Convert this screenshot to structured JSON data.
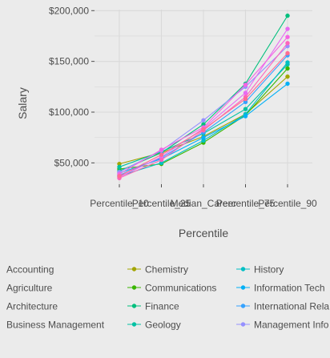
{
  "chart_data": {
    "type": "line",
    "xlabel": "Percentile",
    "ylabel": "Salary",
    "categories": [
      "Percentile_10",
      "Percentile_25",
      "Median_Career",
      "Percentile_75",
      "Percentile_90"
    ],
    "y_ticks": [
      {
        "value": 50000,
        "label": "$50,000"
      },
      {
        "value": 100000,
        "label": "$100,000"
      },
      {
        "value": 150000,
        "label": "$150,000"
      },
      {
        "value": 200000,
        "label": "$200,000"
      }
    ],
    "ylim": [
      29000,
      201000
    ],
    "grid": true,
    "background_color": "#ebebeb",
    "grid_color": "#d9d9d9",
    "legend_position": "bottom",
    "series": [
      {
        "name": "Accounting",
        "color": "#f8766d",
        "values": [
          null,
          null,
          null,
          null,
          null
        ],
        "legend_marker": false
      },
      {
        "name": "Agriculture",
        "color": "#e58700",
        "values": [
          null,
          null,
          null,
          null,
          null
        ],
        "legend_marker": false
      },
      {
        "name": "Architecture",
        "color": "#c99800",
        "values": [
          null,
          null,
          null,
          null,
          null
        ],
        "legend_marker": false
      },
      {
        "name": "Business Management",
        "color": "#a3a500",
        "values": [
          null,
          null,
          null,
          null,
          null
        ],
        "legend_marker": false
      },
      {
        "name": "Chemistry",
        "color": "#a3a500",
        "values": [
          49000,
          60000,
          76000,
          98000,
          135000
        ],
        "legend_marker": true
      },
      {
        "name": "Communications",
        "color": "#39b600",
        "values": [
          44000,
          49000,
          70000,
          97000,
          143000
        ],
        "legend_marker": true
      },
      {
        "name": "Finance",
        "color": "#00bf7d",
        "values": [
          42000,
          60000,
          88000,
          128000,
          195000
        ],
        "legend_marker": true
      },
      {
        "name": "Geology",
        "color": "#00c1a3",
        "values": [
          46000,
          61000,
          79000,
          103000,
          147000
        ],
        "legend_marker": true
      },
      {
        "name": "History",
        "color": "#00bfc4",
        "values": [
          37000,
          50000,
          72000,
          98000,
          149000
        ],
        "legend_marker": true
      },
      {
        "name": "Information Tech",
        "color": "#00b0f6",
        "values": [
          40000,
          54000,
          75000,
          96000,
          128000
        ],
        "legend_marker": true
      },
      {
        "name": "International Rela",
        "color": "#35a2ff",
        "values": [
          38000,
          55000,
          80000,
          110000,
          156000
        ],
        "legend_marker": true
      },
      {
        "name": "Management Info",
        "color": "#9590ff",
        "values": [
          41000,
          62000,
          92000,
          125000,
          165000
        ],
        "legend_marker": true
      },
      {
        "name": "",
        "color": "#e76bf3",
        "values": [
          36000,
          56000,
          84000,
          119000,
          182000
        ],
        "legend_marker": false
      },
      {
        "name": "",
        "color": "#ff62bc",
        "values": [
          35000,
          53000,
          82000,
          115000,
          168000
        ],
        "legend_marker": false
      },
      {
        "name": "",
        "color": "#f564e3",
        "values": [
          39000,
          63000,
          85000,
          127000,
          174000
        ],
        "legend_marker": false
      },
      {
        "name": "",
        "color": "#ff6c91",
        "values": [
          37000,
          58000,
          83000,
          113000,
          158000
        ],
        "legend_marker": false
      }
    ]
  }
}
